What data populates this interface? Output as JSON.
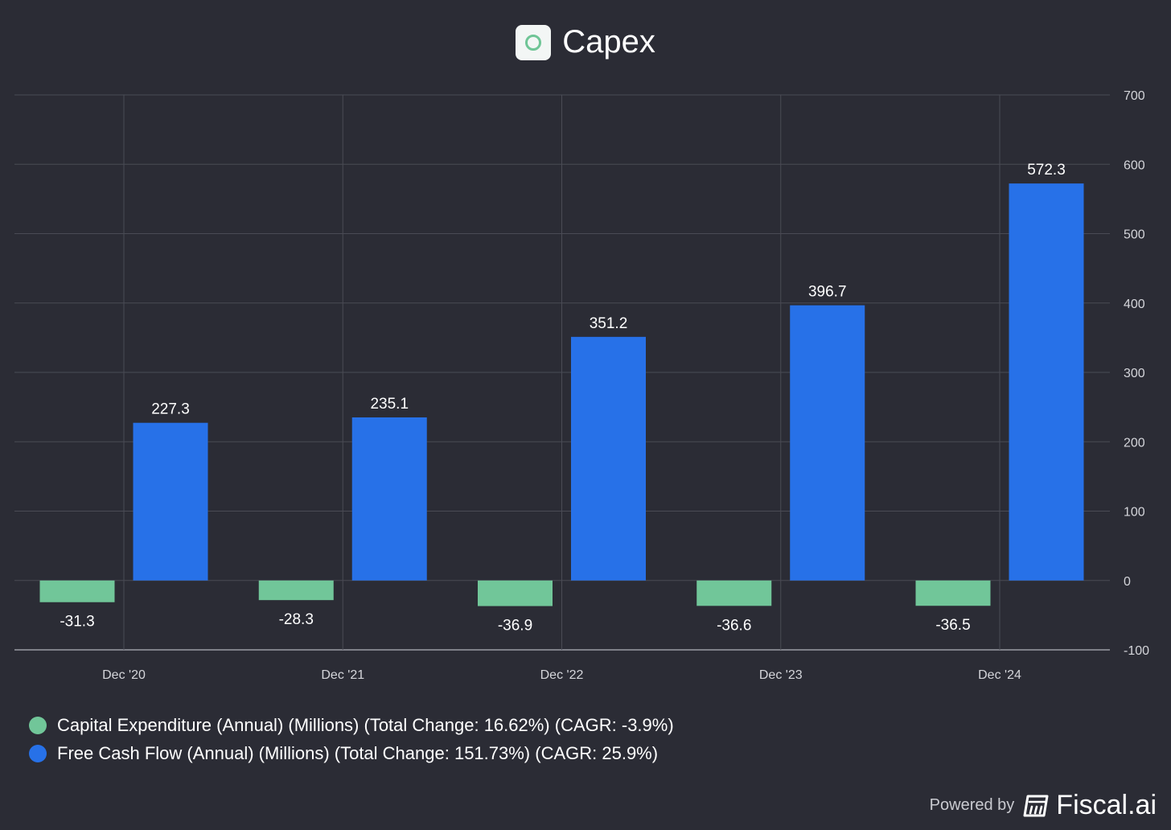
{
  "header": {
    "title": "Capex",
    "logo_icon": "circle-logo-icon"
  },
  "chart_data": {
    "type": "bar",
    "title": "Capex",
    "categories": [
      "Dec '20",
      "Dec '21",
      "Dec '22",
      "Dec '23",
      "Dec '24"
    ],
    "series": [
      {
        "name": "Capital Expenditure (Annual) (Millions) (Total Change: 16.62%) (CAGR: -3.9%)",
        "color": "#71c699",
        "values": [
          -31.3,
          -28.3,
          -36.9,
          -36.6,
          -36.5
        ],
        "labels": [
          "-31.3",
          "-28.3",
          "-36.9",
          "-36.6",
          "-36.5"
        ]
      },
      {
        "name": "Free Cash Flow (Annual) (Millions) (Total Change: 151.73%) (CAGR: 25.9%)",
        "color": "#2771e8",
        "values": [
          227.3,
          235.1,
          351.2,
          396.7,
          572.3
        ],
        "labels": [
          "227.3",
          "235.1",
          "351.2",
          "396.7",
          "572.3"
        ]
      }
    ],
    "ylim": [
      -100,
      700
    ],
    "yticks": [
      -100,
      0,
      100,
      200,
      300,
      400,
      500,
      600,
      700
    ],
    "ytick_labels": [
      "-100",
      "0",
      "100",
      "200",
      "300",
      "400",
      "500",
      "600",
      "700"
    ],
    "y_axis_position": "right",
    "grid": true,
    "legend_position": "bottom-left"
  },
  "footer": {
    "powered_by": "Powered by",
    "brand": "Fiscal.ai",
    "brand_icon": "fiscal-logo-icon"
  }
}
